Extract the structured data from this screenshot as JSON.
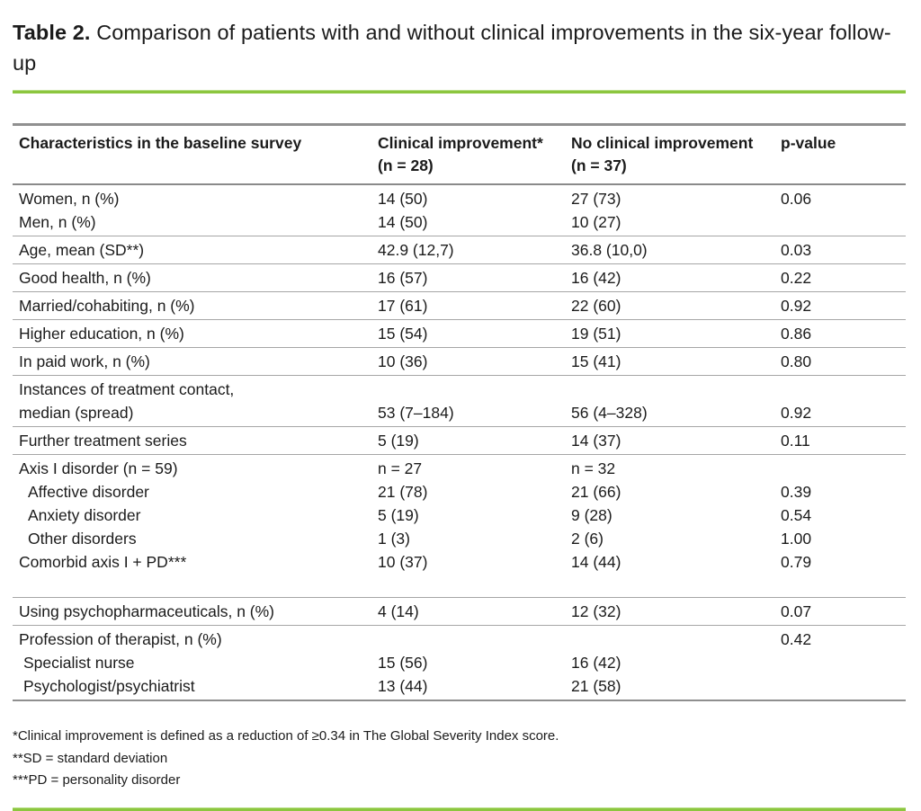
{
  "accent_color": "#8cc63f",
  "title": {
    "label": "Table 2.",
    "text": " Comparison of patients with and without clinical improvements in the six-year follow-up"
  },
  "table": {
    "headers": {
      "col1": "Characteristics in the baseline survey",
      "col2_line1": "Clinical improvement*",
      "col2_line2": "(n = 28)",
      "col3_line1": "No clinical improvement",
      "col3_line2": "(n = 37)",
      "col4": "p-value"
    },
    "rows": [
      {
        "label": "Women, n (%)",
        "c1": "14 (50)",
        "c2": "27 (73)",
        "p": "0.06"
      },
      {
        "label": "Men, n (%)",
        "c1": "14 (50)",
        "c2": "10 (27)",
        "p": ""
      },
      {
        "label": "Age, mean (SD**)",
        "c1": "42.9 (12,7)",
        "c2": "36.8 (10,0)",
        "p": "0.03"
      },
      {
        "label": "Good health, n (%)",
        "c1": "16 (57)",
        "c2": "16 (42)",
        "p": "0.22"
      },
      {
        "label": "Married/cohabiting, n (%)",
        "c1": "17 (61)",
        "c2": "22 (60)",
        "p": "0.92"
      },
      {
        "label": "Higher education, n (%)",
        "c1": "15 (54)",
        "c2": "19 (51)",
        "p": "0.86"
      },
      {
        "label": "In paid work, n (%)",
        "c1": "10 (36)",
        "c2": "15 (41)",
        "p": "0.80"
      },
      {
        "label": "Instances of treatment contact,",
        "label2": "median (spread)",
        "c1": "53 (7–184)",
        "c2": "56 (4–328)",
        "p": "0.92"
      },
      {
        "label": "Further treatment series",
        "c1": "5 (19)",
        "c2": "14 (37)",
        "p": "0.11"
      },
      {
        "label": "Axis I disorder (n = 59)",
        "c1": "n = 27",
        "c2": "n = 32",
        "p": ""
      },
      {
        "label": "Affective disorder",
        "c1": "21 (78)",
        "c2": "21 (66)",
        "p": "0.39"
      },
      {
        "label": "Anxiety disorder",
        "c1": "5 (19)",
        "c2": "9 (28)",
        "p": "0.54"
      },
      {
        "label": "Other disorders",
        "c1": "1 (3)",
        "c2": "2 (6)",
        "p": "1.00"
      },
      {
        "label": "Comorbid axis I + PD***",
        "c1": "10 (37)",
        "c2": "14 (44)",
        "p": "0.79"
      },
      {
        "label": "Using psychopharmaceuticals, n (%)",
        "c1": "4 (14)",
        "c2": "12 (32)",
        "p": "0.07"
      },
      {
        "label": "Profession of therapist, n (%)",
        "c1": "",
        "c2": "",
        "p": "0.42"
      },
      {
        "label": "Specialist nurse",
        "c1": "15 (56)",
        "c2": "16 (42)",
        "p": ""
      },
      {
        "label": "Psychologist/psychiatrist",
        "c1": "13 (44)",
        "c2": "21 (58)",
        "p": ""
      }
    ]
  },
  "footnotes": [
    "*Clinical improvement is defined as a reduction of ≥0.34 in The Global Severity Index score.",
    "**SD = standard deviation",
    "***PD = personality disorder"
  ]
}
